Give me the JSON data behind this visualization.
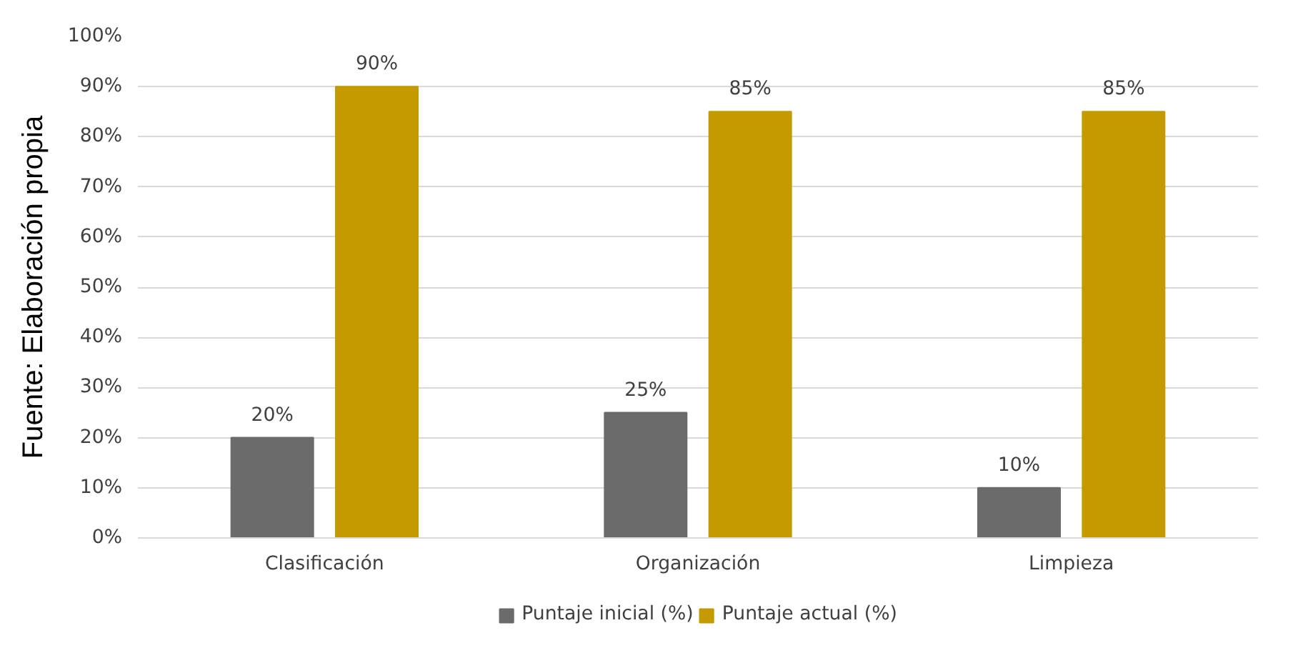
{
  "chart_data": {
    "type": "bar",
    "categories": [
      "Clasificación",
      "Organización",
      "Limpieza"
    ],
    "series": [
      {
        "name": "Puntaje inicial (%)",
        "color": "#6b6b6b",
        "values": [
          20,
          25,
          10
        ],
        "value_labels": [
          "20%",
          "25%",
          "10%"
        ]
      },
      {
        "name": "Puntaje actual (%)",
        "color": "#c49a00",
        "values": [
          90,
          85,
          85
        ],
        "value_labels": [
          "90%",
          "85%",
          "85%"
        ]
      }
    ],
    "ylim": [
      0,
      100
    ],
    "yticks": [
      {
        "value": 0,
        "label": "0%"
      },
      {
        "value": 10,
        "label": "10%"
      },
      {
        "value": 20,
        "label": "20%"
      },
      {
        "value": 30,
        "label": "30%"
      },
      {
        "value": 40,
        "label": "40%"
      },
      {
        "value": 50,
        "label": "50%"
      },
      {
        "value": 60,
        "label": "60%"
      },
      {
        "value": 70,
        "label": "70%"
      },
      {
        "value": 80,
        "label": "80%"
      },
      {
        "value": 90,
        "label": "90%"
      },
      {
        "value": 100,
        "label": "100%"
      }
    ],
    "grid": "y",
    "legend": "bottom",
    "annotations": [
      "Fuente: Elaboración propia"
    ]
  }
}
